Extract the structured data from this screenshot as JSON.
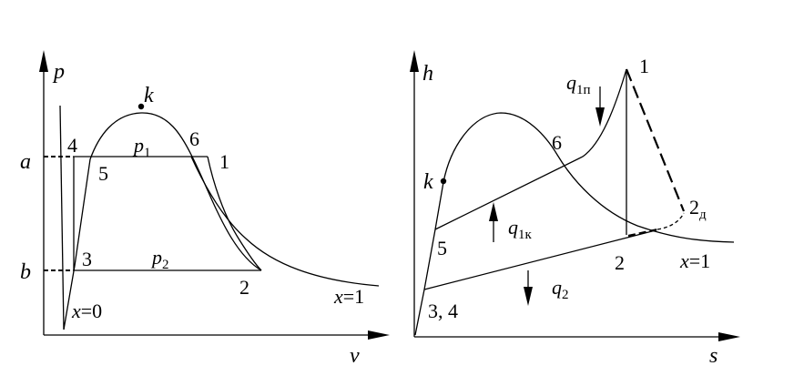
{
  "left_diagram": {
    "axis_y": "p",
    "axis_x": "v",
    "tick_a": "a",
    "tick_b": "b",
    "critical_point": "k",
    "pressure_high": {
      "sym": "p",
      "sub": "1"
    },
    "pressure_low": {
      "sym": "p",
      "sub": "2"
    },
    "points": {
      "p1": "1",
      "p2": "2",
      "p3": "3",
      "p4": "4",
      "p5": "5",
      "p6": "6"
    },
    "x0": {
      "sym": "x",
      "rest": "=0"
    },
    "x1": {
      "sym": "x",
      "rest": "=1"
    }
  },
  "right_diagram": {
    "axis_y": "h",
    "axis_x": "s",
    "critical_point": "k",
    "heat_superheat": {
      "sym": "q",
      "sub": "1п"
    },
    "heat_boiler": {
      "sym": "q",
      "sub": "1к"
    },
    "heat_out": {
      "sym": "q",
      "sub": "2"
    },
    "points": {
      "p1": "1",
      "p2": "2",
      "p2d": {
        "main": "2",
        "sub": "д"
      },
      "p34": "3, 4",
      "p5": "5",
      "p6": "6"
    },
    "x1": {
      "sym": "x",
      "rest": "=1"
    }
  }
}
